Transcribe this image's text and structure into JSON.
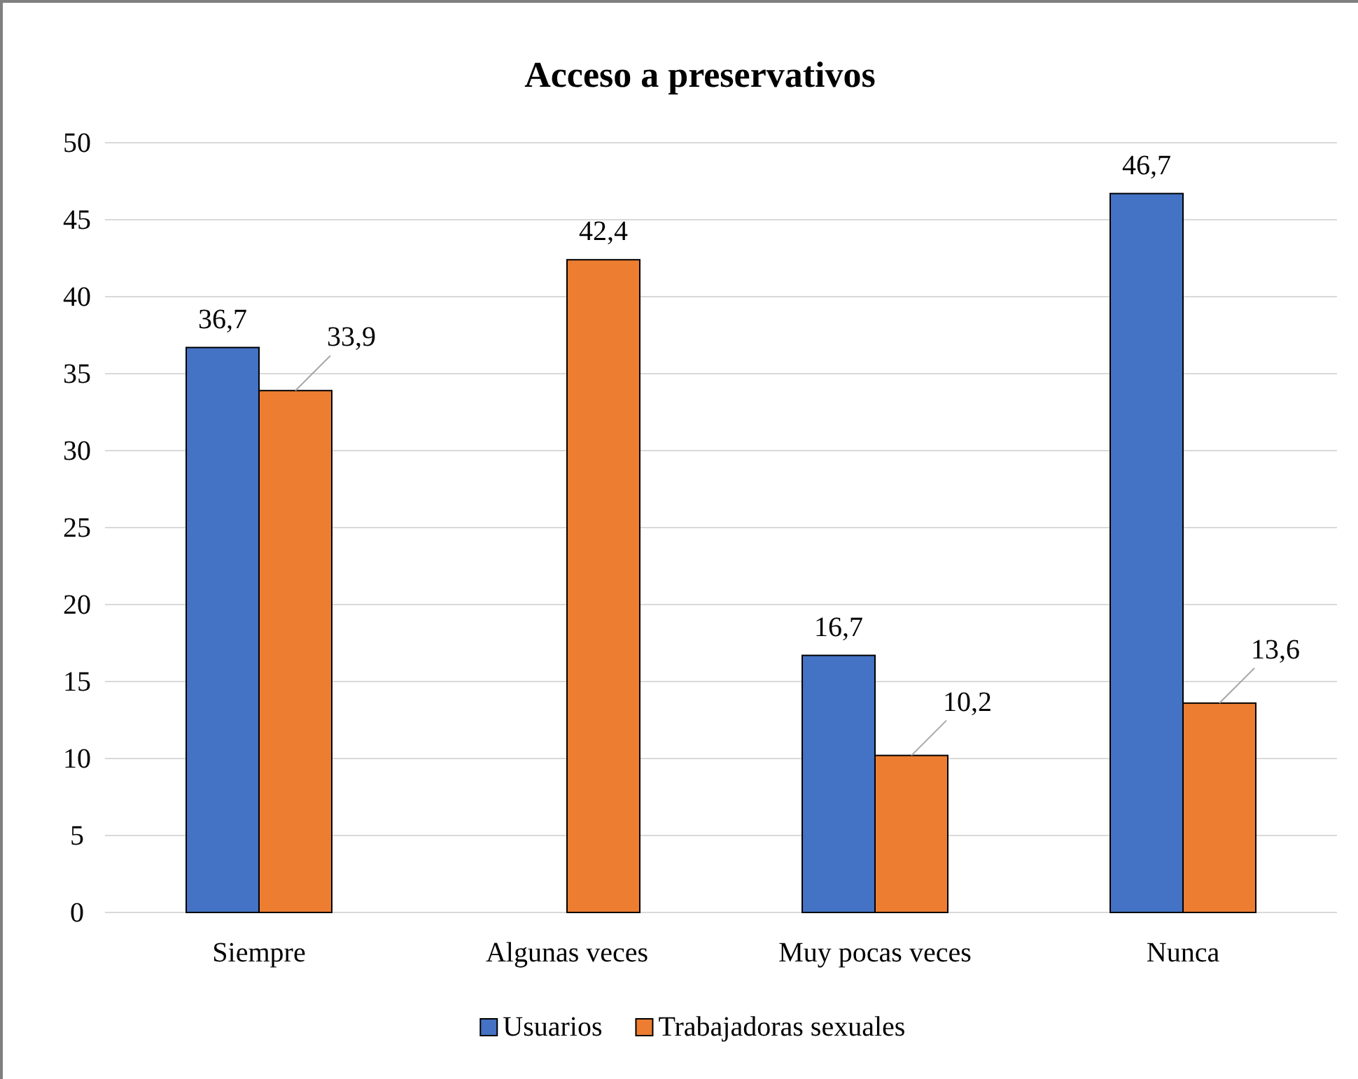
{
  "chart_data": {
    "type": "bar",
    "title": "Acceso a preservativos",
    "categories": [
      "Siempre",
      "Algunas veces",
      "Muy pocas veces",
      "Nunca"
    ],
    "series": [
      {
        "name": "Usuarios",
        "color": "#4472c4",
        "values": [
          36.7,
          null,
          16.7,
          46.7
        ],
        "value_labels": [
          "36,7",
          null,
          "16,7",
          "46,7"
        ]
      },
      {
        "name": "Trabajadoras sexuales",
        "color": "#ed7d31",
        "values": [
          33.9,
          42.4,
          10.2,
          13.6
        ],
        "value_labels": [
          "33,9",
          "42,4",
          "10,2",
          "13,6"
        ]
      }
    ],
    "ylim": [
      0,
      50
    ],
    "yticks": [
      0,
      5,
      10,
      15,
      20,
      25,
      30,
      35,
      40,
      45,
      50
    ],
    "grid": "y",
    "legend": "bottom"
  }
}
